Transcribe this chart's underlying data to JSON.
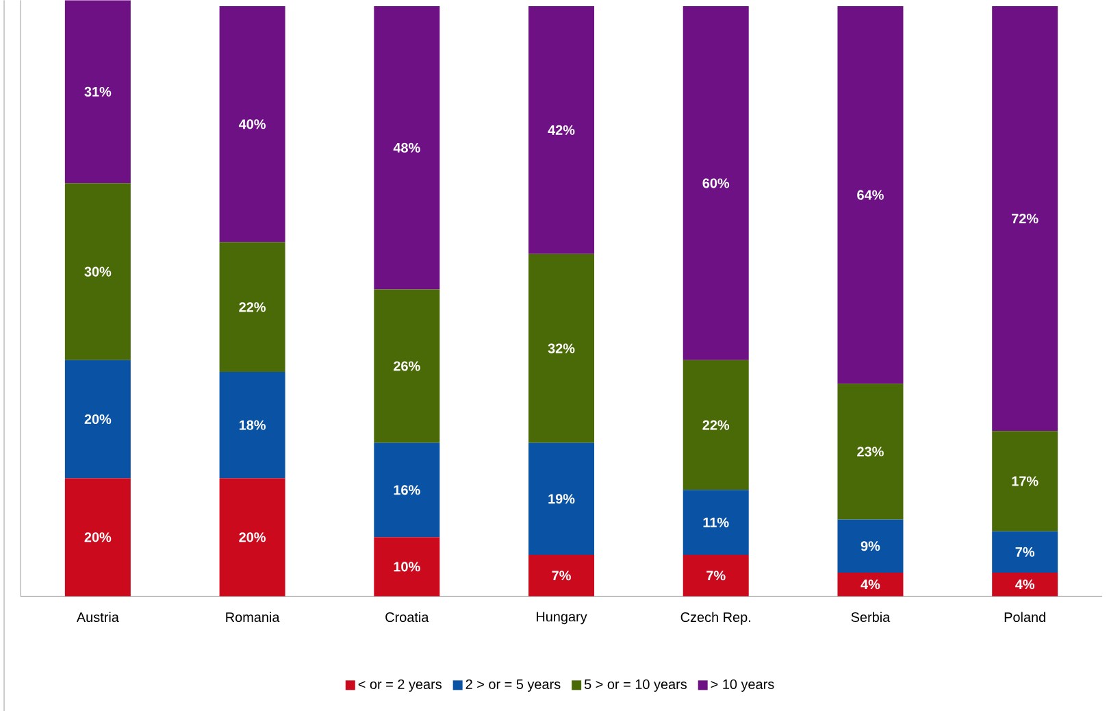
{
  "chart_data": {
    "type": "bar",
    "stacked": true,
    "categories": [
      "Austria",
      "Romania",
      "Croatia",
      "Hungary",
      "Czech Rep.",
      "Serbia",
      "Poland"
    ],
    "series": [
      {
        "name": "< or = 2 years",
        "color": "#cc0a1e",
        "values": [
          20,
          20,
          10,
          7,
          7,
          4,
          4
        ],
        "value_labels": [
          "20%",
          "20%",
          "10%",
          "7%",
          "7%",
          "4%",
          "4%"
        ]
      },
      {
        "name": "2 > or = 5 years",
        "color": "#0a52a4",
        "values": [
          20,
          18,
          16,
          19,
          11,
          9,
          7
        ],
        "value_labels": [
          "20%",
          "18%",
          "16%",
          "19%",
          "11%",
          "9%",
          "7%"
        ]
      },
      {
        "name": "5 > or = 10 years",
        "color": "#4a6a08",
        "values": [
          30,
          22,
          26,
          32,
          22,
          23,
          17
        ],
        "value_labels": [
          "30%",
          "22%",
          "26%",
          "32%",
          "22%",
          "23%",
          "17%"
        ]
      },
      {
        "name": "> 10 years",
        "color": "#6e1184",
        "values": [
          31,
          40,
          48,
          42,
          60,
          64,
          72
        ],
        "value_labels": [
          "31%",
          "40%",
          "48%",
          "42%",
          "60%",
          "64%",
          "72%"
        ]
      }
    ],
    "legend": "bottom"
  }
}
